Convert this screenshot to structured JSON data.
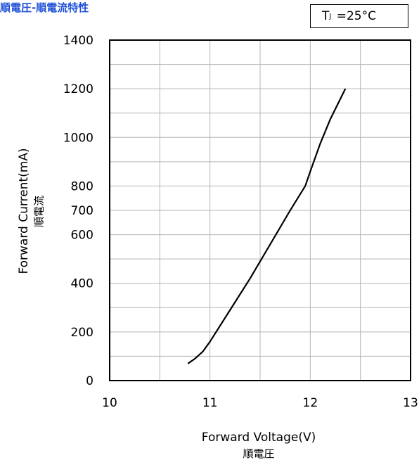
{
  "page_title": "順電圧-順電流特性",
  "condition": {
    "symbol": "T",
    "subscript": "J",
    "value": "=25°C"
  },
  "chart_data": {
    "type": "line",
    "title": "順電圧-順電流特性",
    "xlabel": "Forward Voltage(V)",
    "xlabel_sub": "順電圧",
    "ylabel": "Forward Current(mA)",
    "ylabel_sub": "順電流",
    "xlim": [
      10,
      13
    ],
    "ylim": [
      0,
      1400
    ],
    "xticks": [
      10,
      11,
      12,
      13
    ],
    "yticks": [
      0,
      200,
      400,
      600,
      700,
      800,
      1000,
      1200,
      1400
    ],
    "grid": true,
    "series": [
      {
        "x": [
          10.78,
          10.85,
          10.93,
          11.0,
          11.2,
          11.4,
          11.6,
          11.8,
          11.95,
          12.0,
          12.1,
          12.2,
          12.35
        ],
        "y": [
          70,
          90,
          120,
          160,
          290,
          420,
          560,
          700,
          800,
          860,
          975,
          1075,
          1200
        ]
      }
    ]
  }
}
